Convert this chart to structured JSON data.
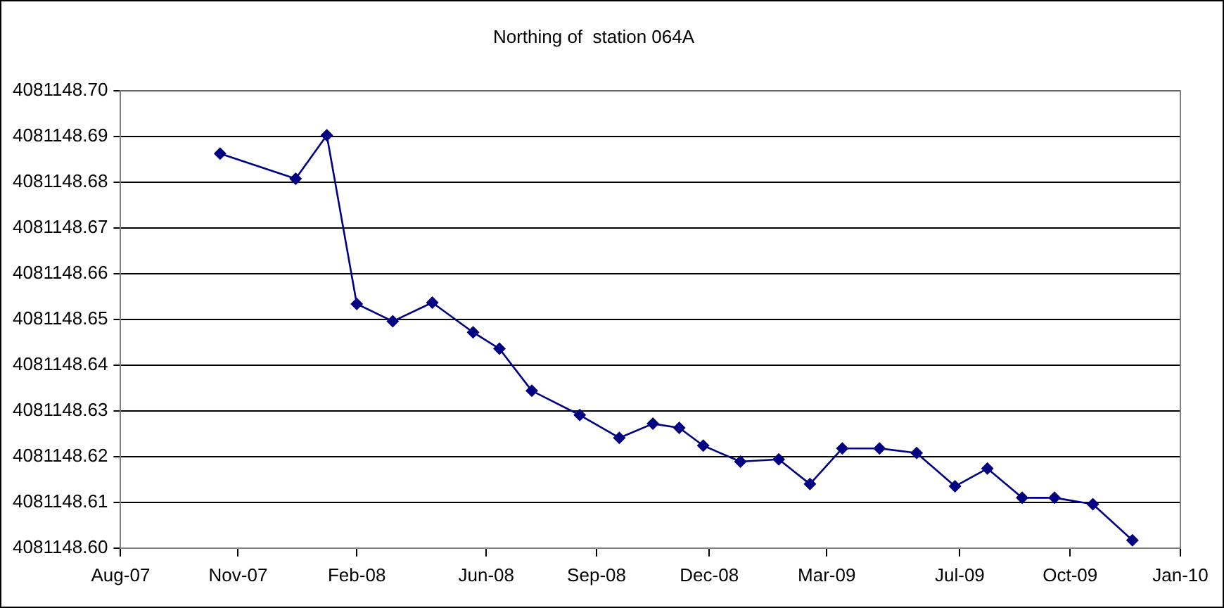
{
  "chart_data": {
    "type": "line",
    "title": "Northing of  station 064A",
    "x": [
      "2007-10-23",
      "2007-12-25",
      "2008-01-20",
      "2008-02-14",
      "2008-03-15",
      "2008-04-17",
      "2008-05-21",
      "2008-06-12",
      "2008-07-09",
      "2008-08-18",
      "2008-09-20",
      "2008-10-18",
      "2008-11-09",
      "2008-11-29",
      "2008-12-30",
      "2009-01-31",
      "2009-02-26",
      "2009-03-25",
      "2009-04-25",
      "2009-05-26",
      "2009-06-27",
      "2009-07-24",
      "2009-08-22",
      "2009-09-18",
      "2009-10-20",
      "2009-11-22"
    ],
    "series": [
      {
        "color": "#000080",
        "values": [
          4081148.6863,
          4081148.6808,
          4081148.6903,
          4081148.6534,
          4081148.6496,
          4081148.6537,
          4081148.6472,
          4081148.6436,
          4081148.6344,
          4081148.6291,
          4081148.6241,
          4081148.6272,
          4081148.6263,
          4081148.6224,
          4081148.6189,
          4081148.6194,
          4081148.614,
          4081148.6218,
          4081148.6218,
          4081148.6208,
          4081148.6135,
          4081148.6174,
          4081148.611,
          4081148.611,
          4081148.6096,
          4081148.6017
        ]
      }
    ],
    "xlim": [
      "2007-08-01",
      "2010-01-01"
    ],
    "xticks": [
      {
        "value": "2007-08-01",
        "label": "Aug-07"
      },
      {
        "value": "2007-11-07",
        "label": "Nov-07"
      },
      {
        "value": "2008-02-14",
        "label": "Feb-08"
      },
      {
        "value": "2008-06-01",
        "label": "Jun-08"
      },
      {
        "value": "2008-09-01",
        "label": "Sep-08"
      },
      {
        "value": "2008-12-04",
        "label": "Dec-08"
      },
      {
        "value": "2009-03-12",
        "label": "Mar-09"
      },
      {
        "value": "2009-07-01",
        "label": "Jul-09"
      },
      {
        "value": "2009-10-01",
        "label": "Oct-09"
      },
      {
        "value": "2010-01-01",
        "label": "Jan-10"
      }
    ],
    "ylim": [
      4081148.6,
      4081148.7
    ],
    "yticks": [
      {
        "value": 4081148.6,
        "label": "4081148.60"
      },
      {
        "value": 4081148.61,
        "label": "4081148.61"
      },
      {
        "value": 4081148.62,
        "label": "4081148.62"
      },
      {
        "value": 4081148.63,
        "label": "4081148.63"
      },
      {
        "value": 4081148.64,
        "label": "4081148.64"
      },
      {
        "value": 4081148.65,
        "label": "4081148.65"
      },
      {
        "value": 4081148.66,
        "label": "4081148.66"
      },
      {
        "value": 4081148.67,
        "label": "4081148.67"
      },
      {
        "value": 4081148.68,
        "label": "4081148.68"
      },
      {
        "value": 4081148.69,
        "label": "4081148.69"
      },
      {
        "value": 4081148.7,
        "label": "4081148.70"
      }
    ],
    "grid": "y",
    "legend": false,
    "marker": "diamond",
    "line_style": "solid"
  }
}
